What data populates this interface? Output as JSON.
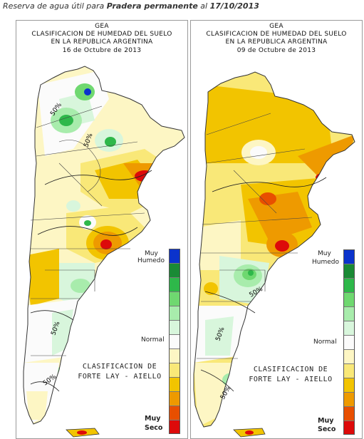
{
  "page": {
    "caption_prefix": "Reserva de agua útil para ",
    "caption_bold": "Pradera permanente",
    "caption_mid": " al ",
    "caption_date": "17/10/2013"
  },
  "left_panel": {
    "org": "GEA",
    "title_line1": "CLASIFICACION DE HUMEDAD DEL SUELO",
    "title_line2": "EN LA REPUBLICA ARGENTINA",
    "date": "16 de Octubre de 2013",
    "isoline_labels": [
      "50%",
      "50%",
      "50%",
      "50%"
    ]
  },
  "right_panel": {
    "org": "GEA",
    "title_line1": "CLASIFICACION DE HUMEDAD DEL SUELO",
    "title_line2": "EN LA REPUBLICA ARGENTINA",
    "date": "09 de Octubre de 2013",
    "isoline_labels": [
      "50%",
      "50%",
      "50%"
    ]
  },
  "legend": {
    "top_label_1": "Muy",
    "top_label_2": "Humedo",
    "mid_label": "Normal",
    "bottom_label_1": "Muy",
    "bottom_label_2": "Seco",
    "classification_line1": "CLASIFICACION DE",
    "classification_line2": "FORTE LAY - AIELLO",
    "colors": [
      "#0b33cc",
      "#1a8a35",
      "#2eb84a",
      "#6fd870",
      "#a8ecac",
      "#d8f6dc",
      "#fbfbfb",
      "#fdf6c4",
      "#f9e878",
      "#f2c400",
      "#ee9a00",
      "#e84f00",
      "#dd0a0a"
    ]
  }
}
